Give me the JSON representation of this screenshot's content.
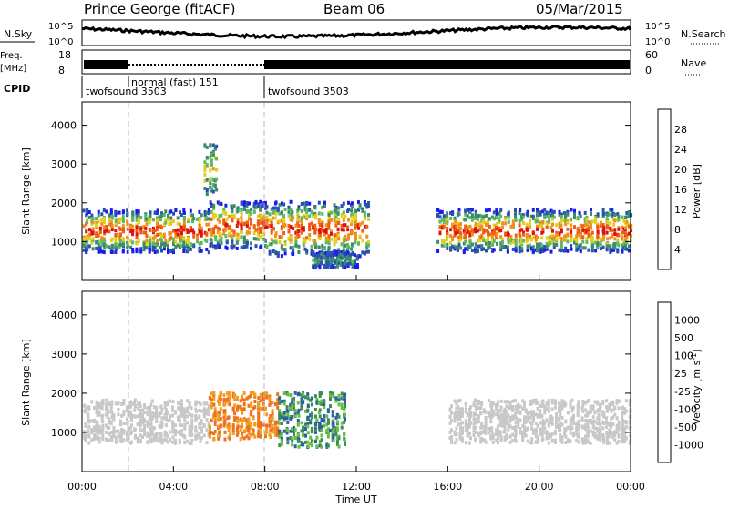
{
  "header": {
    "station": "Prince George (fitACF)",
    "beam": "Beam 06",
    "date": "05/Mar/2015"
  },
  "strip": {
    "nsky_label": "N.Sky",
    "nsky_ticks": [
      "10^5",
      "10^0"
    ],
    "nsearch_label": "N.Search",
    "freq_label": "Freq.",
    "freq_unit": "[MHz]",
    "freq_ticks": [
      "18",
      "8"
    ],
    "nave_ticks": [
      "60",
      "0"
    ],
    "nave_label": "Nave",
    "cpid_label": "CPID",
    "cpid_segments": [
      {
        "label": "twofsound 3503",
        "start_h": 0,
        "end_h": 2.0
      },
      {
        "label": "normal (fast) 151",
        "start_h": 2.0,
        "end_h": 8.0
      },
      {
        "label": "twofsound 3503",
        "start_h": 8.0,
        "end_h": 24.0
      }
    ]
  },
  "chart_data": [
    {
      "type": "heatmap",
      "parameter": "power",
      "ylabel": "Slant Range [km]",
      "yticks": [
        "1000",
        "2000",
        "3000",
        "4000"
      ],
      "ylim": [
        0,
        4600
      ],
      "colorbar_label": "Power [dB]",
      "colorbar_ticks": [
        "4",
        "8",
        "12",
        "16",
        "20",
        "24",
        "28"
      ],
      "colorbar_colors": [
        "#1a1aee",
        "#2a50b0",
        "#3b8c6e",
        "#5db860",
        "#e0d020",
        "#f09020",
        "#ee6010",
        "#e01010"
      ],
      "echo_regions": [
        {
          "t": [
            0.0,
            5.5
          ],
          "r": [
            700,
            1800
          ],
          "level": "high"
        },
        {
          "t": [
            5.5,
            8.0
          ],
          "r": [
            800,
            2000
          ],
          "level": "high"
        },
        {
          "t": [
            5.3,
            5.9
          ],
          "r": [
            2200,
            3500
          ],
          "level": "medium"
        },
        {
          "t": [
            8.0,
            12.5
          ],
          "r": [
            600,
            2000
          ],
          "level": "high"
        },
        {
          "t": [
            10.0,
            12.0
          ],
          "r": [
            300,
            700
          ],
          "level": "low"
        },
        {
          "t": [
            15.5,
            24.0
          ],
          "r": [
            700,
            1800
          ],
          "level": "high"
        }
      ]
    },
    {
      "type": "heatmap",
      "parameter": "velocity",
      "ylabel": "Slant Range [km]",
      "yticks": [
        "1000",
        "2000",
        "3000",
        "4000"
      ],
      "ylim": [
        0,
        4600
      ],
      "xlabel": "Time UT",
      "xticks": [
        "00:00",
        "04:00",
        "08:00",
        "12:00",
        "16:00",
        "20:00",
        "00:00"
      ],
      "xlim_hours": [
        0,
        24
      ],
      "colorbar_label": "Velocity [m s",
      "colorbar_unit_sup": "-1",
      "colorbar_unit_close": "]",
      "colorbar_ticks": [
        "1000",
        "500",
        "100",
        "25",
        "-25",
        "-100",
        "-500",
        "-1000"
      ],
      "colorbar_colors": [
        "#1a3acc",
        "#2a60a0",
        "#3d8c5a",
        "#66c040",
        "#c8c8c8",
        "#f0a020",
        "#f07020",
        "#e02010",
        "#e00000"
      ],
      "echo_regions": [
        {
          "t": [
            0.0,
            5.5
          ],
          "r": [
            700,
            1800
          ],
          "class": "ground-scatter"
        },
        {
          "t": [
            5.5,
            8.5
          ],
          "r": [
            800,
            2000
          ],
          "class": "negative"
        },
        {
          "t": [
            8.5,
            11.5
          ],
          "r": [
            600,
            2000
          ],
          "class": "positive"
        },
        {
          "t": [
            16.0,
            24.0
          ],
          "r": [
            700,
            1800
          ],
          "class": "ground-scatter"
        }
      ]
    }
  ]
}
